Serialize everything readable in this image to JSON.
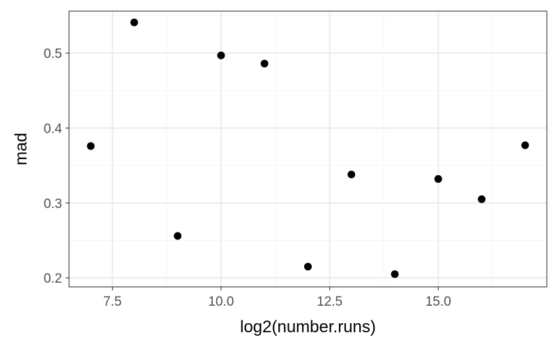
{
  "chart_data": {
    "type": "scatter",
    "title": "",
    "xlabel": "log2(number.runs)",
    "ylabel": "mad",
    "xlim": [
      6.5,
      17.5
    ],
    "ylim": [
      0.188,
      0.556
    ],
    "x_ticks": [
      7.5,
      10.0,
      12.5,
      15.0
    ],
    "x_tick_labels": [
      "7.5",
      "10.0",
      "12.5",
      "15.0"
    ],
    "y_ticks": [
      0.2,
      0.3,
      0.4,
      0.5
    ],
    "y_tick_labels": [
      "0.2",
      "0.3",
      "0.4",
      "0.5"
    ],
    "grid": true,
    "legend": "none",
    "colors": {
      "point": "#000000",
      "grid_major": "#ebebeb",
      "grid_minor": "#f5f5f5",
      "panel_border": "#333333",
      "tick_text": "#4d4d4d"
    },
    "points": [
      {
        "x": 7,
        "y": 0.376
      },
      {
        "x": 8,
        "y": 0.541
      },
      {
        "x": 9,
        "y": 0.256
      },
      {
        "x": 10,
        "y": 0.497
      },
      {
        "x": 11,
        "y": 0.486
      },
      {
        "x": 12,
        "y": 0.215
      },
      {
        "x": 13,
        "y": 0.338
      },
      {
        "x": 14,
        "y": 0.205
      },
      {
        "x": 15,
        "y": 0.332
      },
      {
        "x": 16,
        "y": 0.305
      },
      {
        "x": 17,
        "y": 0.377
      }
    ]
  }
}
